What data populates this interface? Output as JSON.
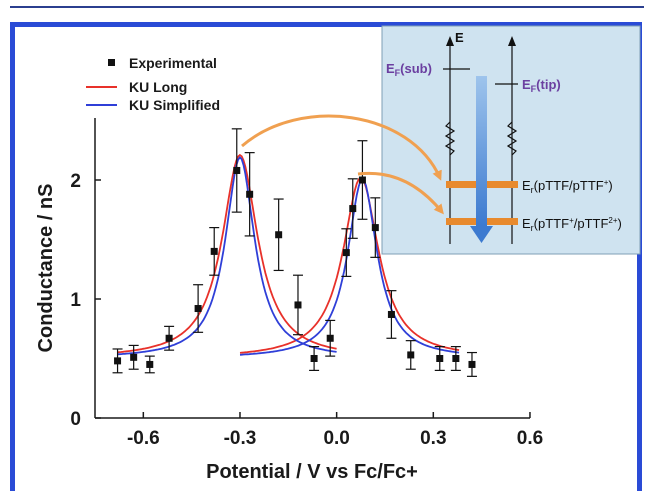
{
  "chart_data": {
    "type": "scatter",
    "title": "",
    "xlabel": "Potential / V vs Fc/Fc+",
    "ylabel": "Conductance / nS",
    "xlim": [
      -0.75,
      0.6
    ],
    "ylim": [
      0,
      2.6
    ],
    "xticks": [
      -0.6,
      -0.3,
      0.0,
      0.3,
      0.6
    ],
    "xtick_labels": [
      "-0.6",
      "-0.3",
      "0.0",
      "0.3",
      "0.6"
    ],
    "yticks": [
      0,
      1,
      2
    ],
    "ytick_labels": [
      "0",
      "1",
      "2"
    ],
    "legend_position": "top-left",
    "series": [
      {
        "name": "Experimental",
        "kind": "points_with_errorbars",
        "color": "#111111",
        "x": [
          -0.68,
          -0.63,
          -0.58,
          -0.52,
          -0.43,
          -0.38,
          -0.31,
          -0.27,
          -0.18,
          -0.12,
          -0.07,
          -0.02,
          0.03,
          0.05,
          0.08,
          0.12,
          0.17,
          0.23,
          0.32,
          0.37,
          0.42
        ],
        "y": [
          0.48,
          0.51,
          0.45,
          0.67,
          0.92,
          1.4,
          2.08,
          1.88,
          1.54,
          0.95,
          0.5,
          0.67,
          1.39,
          1.76,
          2.0,
          1.6,
          0.87,
          0.53,
          0.5,
          0.5,
          0.45
        ],
        "yerr": [
          0.1,
          0.1,
          0.07,
          0.1,
          0.2,
          0.2,
          0.35,
          0.35,
          0.3,
          0.25,
          0.1,
          0.15,
          0.2,
          0.25,
          0.33,
          0.25,
          0.2,
          0.12,
          0.1,
          0.1,
          0.1
        ]
      },
      {
        "name": "KU Long",
        "kind": "curve",
        "color": "#e8312a",
        "peaks": [
          {
            "center": -0.3,
            "height": 2.21,
            "baseline": 0.5,
            "width": 0.085,
            "x_range": [
              -0.68,
              0.0
            ]
          },
          {
            "center": 0.075,
            "height": 2.02,
            "baseline": 0.5,
            "width": 0.085,
            "x_range": [
              -0.3,
              0.38
            ]
          }
        ]
      },
      {
        "name": "KU Simplified",
        "kind": "curve",
        "color": "#2f3fd8",
        "peaks": [
          {
            "center": -0.3,
            "height": 2.19,
            "baseline": 0.5,
            "width": 0.07,
            "x_range": [
              -0.68,
              0.0
            ]
          },
          {
            "center": 0.08,
            "height": 2.01,
            "baseline": 0.5,
            "width": 0.07,
            "x_range": [
              -0.3,
              0.38
            ]
          }
        ]
      }
    ],
    "inset": {
      "energy_axis_label": "E",
      "ef_sub_label": "EF(sub)",
      "ef_tip_label": "EF(tip)",
      "level1_label": "Er(pTTF/pTTF+)",
      "level2_label": "Er(pTTF+/pTTF2+)",
      "background_color": "#cfe3f0",
      "level_color": "#e88a2e",
      "arrow_color": "#4a86d4"
    }
  }
}
